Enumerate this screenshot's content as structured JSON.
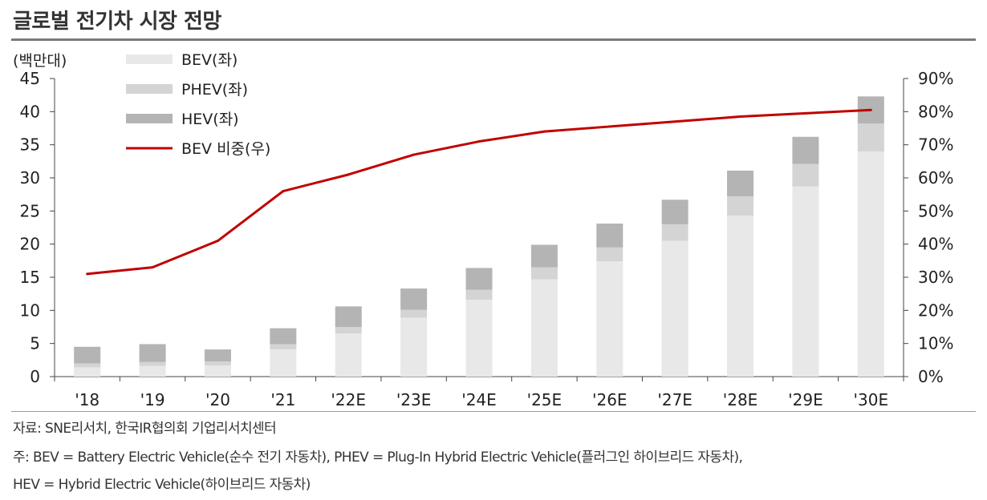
{
  "title": "글로벌 전기차 시장 전망",
  "source_note": "자료: SNE리서치, 한국IR협의회 기업리서치센터",
  "footnote_line1": "주: BEV = Battery Electric Vehicle(순수 전기 자동차), PHEV = Plug-In Hybrid Electric Vehicle(플러그인 하이브리드 자동차),",
  "footnote_line2": "HEV = Hybrid Electric Vehicle(하이브리드 자동차)",
  "colors": {
    "bev": "#e8e8e8",
    "phev": "#d4d4d4",
    "hev": "#b4b4b4",
    "line": "#c00000",
    "axis": "#444444"
  },
  "chart_data": {
    "type": "bar",
    "stacked": true,
    "left_axis_unit": "(백만대)",
    "categories": [
      "'18",
      "'19",
      "'20",
      "'21",
      "'22E",
      "'23E",
      "'24E",
      "'25E",
      "'26E",
      "'27E",
      "'28E",
      "'29E",
      "'30E"
    ],
    "series": [
      {
        "name": "BEV(좌)",
        "axis": "left",
        "values": [
          1.4,
          1.6,
          1.7,
          4.1,
          6.5,
          8.9,
          11.6,
          14.7,
          17.4,
          20.5,
          24.3,
          28.7,
          34.0
        ]
      },
      {
        "name": "PHEV(좌)",
        "axis": "left",
        "values": [
          0.6,
          0.6,
          0.6,
          0.8,
          1.0,
          1.2,
          1.5,
          1.8,
          2.1,
          2.5,
          2.9,
          3.4,
          4.2
        ]
      },
      {
        "name": "HEV(좌)",
        "axis": "left",
        "values": [
          2.5,
          2.7,
          1.8,
          2.4,
          3.1,
          3.2,
          3.3,
          3.4,
          3.6,
          3.7,
          3.9,
          4.1,
          4.1
        ]
      },
      {
        "name": "BEV 비중(우)",
        "axis": "right",
        "type": "line",
        "values": [
          31,
          33,
          41,
          56,
          61,
          67,
          71,
          74,
          75.5,
          77,
          78.5,
          79.5,
          80.5
        ]
      }
    ],
    "ylim": [
      0,
      45
    ],
    "yticks": [
      "0",
      "5",
      "10",
      "15",
      "20",
      "25",
      "30",
      "35",
      "40",
      "45"
    ],
    "y2lim": [
      0,
      90
    ],
    "y2ticks": [
      "0%",
      "10%",
      "20%",
      "30%",
      "40%",
      "50%",
      "60%",
      "70%",
      "80%",
      "90%"
    ],
    "legend_position": "top-left",
    "grid": false
  }
}
